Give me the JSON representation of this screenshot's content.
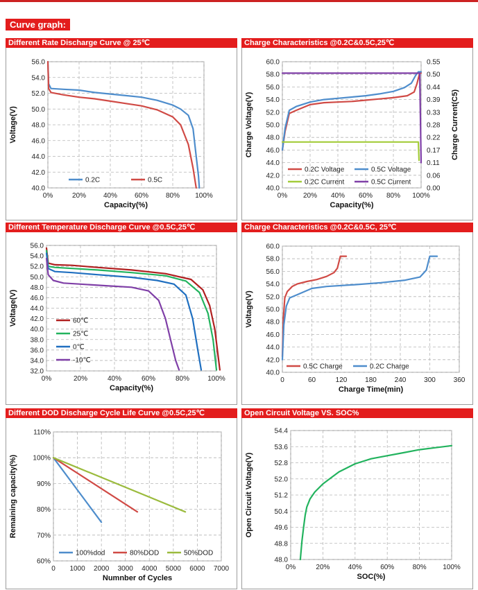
{
  "header": {
    "section_title": "Curve graph:"
  },
  "colors": {
    "red": "#d04a45",
    "blue": "#4e8dcc",
    "green": "#22b35e",
    "lime": "#a3cc3a",
    "purple": "#7f3fa7",
    "darkred": "#b01f1f",
    "olive": "#9bbb3d"
  },
  "chart_data": [
    {
      "id": "rate",
      "panel_title": "Different Rate Discharge Curve @ 25℃",
      "type": "line",
      "xlabel": "Capacity(%)",
      "ylabel": "Voltage(V)",
      "xlim": [
        0,
        100
      ],
      "ylim": [
        40,
        56
      ],
      "xticks": [
        0,
        20,
        40,
        60,
        80,
        100
      ],
      "xtick_labels": [
        "0%",
        "20%",
        "40%",
        "60%",
        "80%",
        "100%"
      ],
      "yticks": [
        40,
        42,
        44,
        46,
        48,
        50,
        52,
        54,
        56
      ],
      "ytick_labels": [
        "40.0",
        "42.0",
        "44.0",
        "46.0",
        "48.0",
        "50.0",
        "52.0",
        "54.0",
        "56.0"
      ],
      "series": [
        {
          "name": "0.2C",
          "color": "#4e8dcc",
          "points": [
            [
              0,
              56
            ],
            [
              0.5,
              53.2
            ],
            [
              2,
              52.6
            ],
            [
              10,
              52.5
            ],
            [
              20,
              52.4
            ],
            [
              30,
              52.1
            ],
            [
              40,
              51.9
            ],
            [
              50,
              51.7
            ],
            [
              60,
              51.5
            ],
            [
              70,
              51.1
            ],
            [
              80,
              50.5
            ],
            [
              85,
              50.0
            ],
            [
              90,
              49.2
            ],
            [
              93,
              47.5
            ],
            [
              95,
              44.0
            ],
            [
              96.5,
              41.5
            ],
            [
              97,
              40
            ]
          ]
        },
        {
          "name": "0.5C",
          "color": "#d04a45",
          "points": [
            [
              0,
              56
            ],
            [
              0.5,
              52.6
            ],
            [
              2,
              52.1
            ],
            [
              10,
              51.8
            ],
            [
              20,
              51.5
            ],
            [
              30,
              51.3
            ],
            [
              40,
              51.0
            ],
            [
              50,
              50.7
            ],
            [
              60,
              50.4
            ],
            [
              70,
              49.9
            ],
            [
              80,
              49.0
            ],
            [
              85,
              48.0
            ],
            [
              90,
              45.5
            ],
            [
              93,
              42.5
            ],
            [
              95,
              40
            ]
          ]
        }
      ]
    },
    {
      "id": "charge1",
      "panel_title": "Charge Characteristics @0.2C&0.5C,25℃",
      "type": "line",
      "xlabel": "Capacity(%)",
      "ylabel": "Charge Voltage(V)",
      "y2label": "Charge Current(C5)",
      "xlim": [
        0,
        100
      ],
      "ylim": [
        40,
        60
      ],
      "y2lim": [
        0,
        0.55
      ],
      "xticks": [
        0,
        20,
        40,
        60,
        80,
        100
      ],
      "xtick_labels": [
        "0%",
        "20%",
        "40%",
        "60%",
        "80%",
        "100%"
      ],
      "yticks": [
        40,
        42,
        44,
        46,
        48,
        50,
        52,
        54,
        56,
        58,
        60
      ],
      "ytick_labels": [
        "40.0",
        "42.0",
        "44.0",
        "46.0",
        "48.0",
        "50.0",
        "52.0",
        "54.0",
        "56.0",
        "58.0",
        "60.0"
      ],
      "y2ticks": [
        0,
        0.055,
        0.11,
        0.165,
        0.22,
        0.275,
        0.33,
        0.385,
        0.44,
        0.495,
        0.55
      ],
      "y2tick_labels": [
        "0.00",
        "0.06",
        "0.11",
        "0.17",
        "0.22",
        "0.28",
        "0.33",
        "0.39",
        "0.44",
        "0.50",
        "0.55"
      ],
      "series": [
        {
          "name": "0.2C Voltage",
          "color": "#d04a45",
          "axis": "y",
          "points": [
            [
              0,
              46
            ],
            [
              2,
              49
            ],
            [
              5,
              51.8
            ],
            [
              10,
              52.3
            ],
            [
              20,
              53.2
            ],
            [
              30,
              53.5
            ],
            [
              40,
              53.6
            ],
            [
              50,
              53.7
            ],
            [
              60,
              53.9
            ],
            [
              70,
              54.1
            ],
            [
              80,
              54.3
            ],
            [
              90,
              54.6
            ],
            [
              95,
              55.2
            ],
            [
              97,
              56.5
            ],
            [
              99,
              58.2
            ],
            [
              100,
              58.2
            ]
          ]
        },
        {
          "name": "0.5C Voltage",
          "color": "#4e8dcc",
          "axis": "y",
          "points": [
            [
              0,
              46
            ],
            [
              2,
              49.5
            ],
            [
              5,
              52.3
            ],
            [
              10,
              52.9
            ],
            [
              20,
              53.6
            ],
            [
              30,
              54.0
            ],
            [
              40,
              54.2
            ],
            [
              50,
              54.4
            ],
            [
              60,
              54.6
            ],
            [
              70,
              54.9
            ],
            [
              80,
              55.3
            ],
            [
              88,
              55.9
            ],
            [
              93,
              56.6
            ],
            [
              96,
              57.8
            ],
            [
              98,
              58.4
            ],
            [
              100,
              58.4
            ]
          ]
        },
        {
          "name": "0.2C Current",
          "color": "#a3cc3a",
          "axis": "y2",
          "points": [
            [
              0,
              0.2
            ],
            [
              98,
              0.2
            ],
            [
              98.5,
              0.12
            ]
          ]
        },
        {
          "name": "0.5C Current",
          "color": "#7f3fa7",
          "axis": "y2",
          "points": [
            [
              0,
              0.5
            ],
            [
              99,
              0.5
            ],
            [
              100,
              0.11
            ]
          ]
        }
      ]
    },
    {
      "id": "temp",
      "panel_title": "Different Temperature Discharge Curve @0.5C,25℃",
      "type": "line",
      "xlabel": "Capacity(%)",
      "ylabel": "Voltage(V)",
      "xlim": [
        0,
        100
      ],
      "ylim": [
        32,
        56
      ],
      "xticks": [
        0,
        20,
        40,
        60,
        80,
        100
      ],
      "xtick_labels": [
        "0%",
        "20%",
        "40%",
        "60%",
        "80%",
        "100%"
      ],
      "yticks": [
        32,
        34,
        36,
        38,
        40,
        42,
        44,
        46,
        48,
        50,
        52,
        54,
        56
      ],
      "ytick_labels": [
        "32.0",
        "34.0",
        "36.0",
        "38.0",
        "40.0",
        "42.0",
        "44.0",
        "46.0",
        "48.0",
        "50.0",
        "52.0",
        "54.0",
        "56.0"
      ],
      "series": [
        {
          "name": "60℃",
          "color": "#b01f1f",
          "points": [
            [
              0,
              55.5
            ],
            [
              1,
              52.6
            ],
            [
              5,
              52.3
            ],
            [
              15,
              52.2
            ],
            [
              30,
              51.8
            ],
            [
              50,
              51.3
            ],
            [
              70,
              50.6
            ],
            [
              85,
              49.5
            ],
            [
              92,
              47.5
            ],
            [
              96,
              44.5
            ],
            [
              99,
              40
            ],
            [
              102,
              32.2
            ]
          ]
        },
        {
          "name": "25℃",
          "color": "#22b35e",
          "points": [
            [
              0,
              55
            ],
            [
              1,
              52.0
            ],
            [
              5,
              51.8
            ],
            [
              15,
              51.6
            ],
            [
              30,
              51.3
            ],
            [
              50,
              50.8
            ],
            [
              70,
              50.2
            ],
            [
              82,
              49.2
            ],
            [
              90,
              47.0
            ],
            [
              95,
              43.0
            ],
            [
              98,
              38.0
            ],
            [
              100,
              32.2
            ]
          ]
        },
        {
          "name": "0℃",
          "color": "#1f6fc0",
          "points": [
            [
              0,
              54.5
            ],
            [
              1,
              51.6
            ],
            [
              5,
              51.0
            ],
            [
              15,
              50.8
            ],
            [
              30,
              50.4
            ],
            [
              50,
              49.9
            ],
            [
              65,
              49.3
            ],
            [
              75,
              48.6
            ],
            [
              82,
              46.5
            ],
            [
              86,
              42.0
            ],
            [
              89,
              36.0
            ],
            [
              91,
              32.2
            ]
          ]
        },
        {
          "name": "-10℃",
          "color": "#7f3fa7",
          "points": [
            [
              0,
              53.5
            ],
            [
              1,
              50.4
            ],
            [
              4,
              49.3
            ],
            [
              10,
              48.8
            ],
            [
              20,
              48.6
            ],
            [
              35,
              48.3
            ],
            [
              50,
              48.0
            ],
            [
              60,
              47.3
            ],
            [
              66,
              45.5
            ],
            [
              70,
              42.0
            ],
            [
              73,
              38.0
            ],
            [
              76,
              34.0
            ],
            [
              78,
              32.2
            ]
          ]
        }
      ]
    },
    {
      "id": "charge2",
      "panel_title": "Charge Characteristics @0.2C&0.5C, 25℃",
      "type": "line",
      "xlabel": "Charge Time(min)",
      "ylabel": "Voltage(V)",
      "xlim": [
        0,
        360
      ],
      "ylim": [
        40,
        60
      ],
      "xticks": [
        0,
        60,
        120,
        180,
        240,
        300,
        360
      ],
      "xtick_labels": [
        "0",
        "60",
        "120",
        "180",
        "240",
        "300",
        "360"
      ],
      "yticks": [
        40,
        42,
        44,
        46,
        48,
        50,
        52,
        54,
        56,
        58,
        60
      ],
      "ytick_labels": [
        "40.0",
        "42.0",
        "44.0",
        "46.0",
        "48.0",
        "50.0",
        "52.0",
        "54.0",
        "56.0",
        "58.0",
        "60.0"
      ],
      "series": [
        {
          "name": "0.5C Charge",
          "color": "#d04a45",
          "points": [
            [
              0,
              42.5
            ],
            [
              2,
              48.5
            ],
            [
              5,
              51.8
            ],
            [
              10,
              52.8
            ],
            [
              20,
              53.6
            ],
            [
              30,
              54.0
            ],
            [
              50,
              54.4
            ],
            [
              70,
              54.7
            ],
            [
              90,
              55.2
            ],
            [
              105,
              55.8
            ],
            [
              112,
              56.5
            ],
            [
              118,
              58.4
            ],
            [
              130,
              58.4
            ]
          ]
        },
        {
          "name": "0.2C Charge",
          "color": "#4e8dcc",
          "points": [
            [
              0,
              42
            ],
            [
              3,
              47.5
            ],
            [
              8,
              50.5
            ],
            [
              15,
              51.8
            ],
            [
              30,
              52.3
            ],
            [
              60,
              53.3
            ],
            [
              90,
              53.6
            ],
            [
              150,
              53.9
            ],
            [
              200,
              54.2
            ],
            [
              250,
              54.6
            ],
            [
              280,
              55.1
            ],
            [
              293,
              56.2
            ],
            [
              300,
              58.4
            ],
            [
              315,
              58.4
            ]
          ]
        }
      ]
    },
    {
      "id": "dod",
      "panel_title": "Different DOD Discharge Cycle Life Curve @0.5C,25℃",
      "type": "line",
      "xlabel": "Numnber of Cycles",
      "ylabel": "Remaining capacity(%)",
      "xlim": [
        0,
        7000
      ],
      "ylim": [
        60,
        110
      ],
      "xticks": [
        0,
        1000,
        2000,
        3000,
        4000,
        5000,
        6000,
        7000
      ],
      "xtick_labels": [
        "0",
        "1000",
        "2000",
        "3000",
        "4000",
        "5000",
        "6000",
        "7000"
      ],
      "yticks": [
        60,
        70,
        80,
        90,
        100,
        110
      ],
      "ytick_labels": [
        "60%",
        "70%",
        "80%",
        "90%",
        "100%",
        "110%"
      ],
      "series": [
        {
          "name": "100%dod",
          "color": "#4e8dcc",
          "points": [
            [
              0,
              100
            ],
            [
              2000,
              75
            ]
          ]
        },
        {
          "name": "80%DOD",
          "color": "#d04a45",
          "points": [
            [
              0,
              100
            ],
            [
              3500,
              79
            ]
          ]
        },
        {
          "name": "50%DOD",
          "color": "#9bbb3d",
          "points": [
            [
              0,
              100
            ],
            [
              5500,
              79
            ]
          ]
        }
      ]
    },
    {
      "id": "ocv",
      "panel_title": "Open Circuit Voltage VS. SOC%",
      "type": "line",
      "xlabel": "SOC(%)",
      "ylabel": "Open Circuit Voltage(V)",
      "xlim": [
        0,
        100
      ],
      "ylim": [
        48,
        54.4
      ],
      "xticks": [
        0,
        20,
        40,
        60,
        80,
        100
      ],
      "xtick_labels": [
        "0%",
        "20%",
        "40%",
        "60%",
        "80%",
        "100%"
      ],
      "yticks": [
        48.0,
        48.8,
        49.6,
        50.4,
        51.2,
        52.0,
        52.8,
        53.6,
        54.4
      ],
      "ytick_labels": [
        "48.0",
        "48.8",
        "49.6",
        "50.4",
        "51.2",
        "52.0",
        "52.8",
        "53.6",
        "54.4"
      ],
      "series": [
        {
          "name": "",
          "color": "#22b35e",
          "points": [
            [
              6,
              48.0
            ],
            [
              7,
              48.9
            ],
            [
              8,
              49.6
            ],
            [
              9,
              50.2
            ],
            [
              10,
              50.6
            ],
            [
              12,
              51.0
            ],
            [
              15,
              51.35
            ],
            [
              20,
              51.75
            ],
            [
              25,
              52.05
            ],
            [
              30,
              52.35
            ],
            [
              40,
              52.75
            ],
            [
              50,
              53.0
            ],
            [
              60,
              53.15
            ],
            [
              70,
              53.3
            ],
            [
              80,
              53.45
            ],
            [
              90,
              53.55
            ],
            [
              100,
              53.65
            ]
          ]
        }
      ]
    }
  ]
}
